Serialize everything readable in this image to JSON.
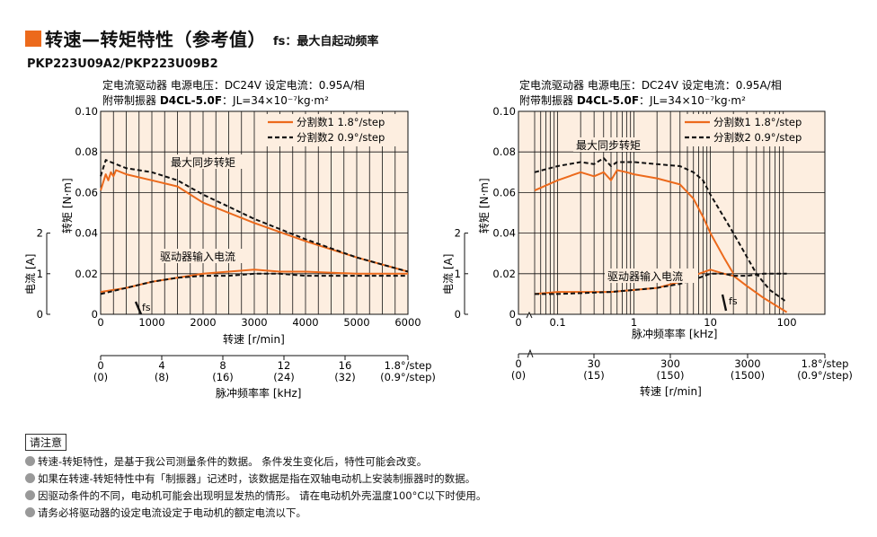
{
  "header": {
    "title": "转速—转矩特性（参考值）",
    "subtitle": "fs：最大自起动频率",
    "model": "PKP223U09A2/PKP223U09B2"
  },
  "condition": {
    "line1": "定电流驱动器  电源电压：DC24V  设定电流：0.95A/相",
    "line2_prefix": "附带制振器 ",
    "line2_damper": "D4CL-5.0F",
    "line2_suffix": "：JL=34×10⁻⁷kg·m²"
  },
  "legend": {
    "item1": "分割数1   1.8°/step",
    "item2": "分割数2   0.9°/step"
  },
  "labels": {
    "torque_axis": "转矩 [N·m]",
    "current_axis": "电流 [A]",
    "max_sync_torque": "最大同步转矩",
    "driver_input_current": "驱动器输入电流",
    "fs": "fs",
    "speed_axis": "转速 [r/min]",
    "pulse_freq_khz": "脉冲频率率 [kHz]",
    "pulse_freq_axis": "脉冲频率率 [kHz]",
    "speed_axis_right": "转速 [r/min]",
    "step_full": "1.8°/step",
    "step_half": "(0.9°/step)"
  },
  "colors": {
    "accent": "#ec6a1c",
    "plot_bg": "#fdeee0",
    "grid": "#111111",
    "series_dashed": "#111111"
  },
  "chart_data": [
    {
      "type": "line",
      "title": "",
      "xlabel": "转速 [r/min]",
      "ylabel": "转矩 [N·m]",
      "y2label": "电流 [A]",
      "xlim": [
        0,
        6000
      ],
      "ylim": [
        0,
        0.1
      ],
      "x_ticks": [
        "0",
        "1000",
        "2000",
        "3000",
        "4000",
        "5000",
        "6000"
      ],
      "y_ticks": [
        "0",
        "0.02",
        "0.04",
        "0.06",
        "0.08",
        "0.10"
      ],
      "y2_ticks": [
        "0",
        "1",
        "2"
      ],
      "grid": true,
      "legend_position": "top-right",
      "secondary_axis_ticks": [
        "0\n(0)",
        "4\n(8)",
        "8\n(16)",
        "12\n(24)",
        "16\n(32)",
        "1.8°/step\n(0.9°/step)"
      ],
      "series": [
        {
          "name": "分割数1   1.8°/step",
          "style": "solid",
          "x": [
            0,
            100,
            150,
            200,
            250,
            300,
            500,
            1000,
            1500,
            2000,
            3000,
            4000,
            5000,
            6000
          ],
          "y": [
            0.061,
            0.069,
            0.066,
            0.07,
            0.068,
            0.071,
            0.069,
            0.066,
            0.063,
            0.055,
            0.045,
            0.036,
            0.028,
            0.021
          ]
        },
        {
          "name": "分割数2   0.9°/step",
          "style": "dashed",
          "x": [
            0,
            50,
            100,
            200,
            300,
            500,
            1000,
            1500,
            2000,
            2500,
            3000,
            4000,
            5000,
            6000
          ],
          "y": [
            0.068,
            0.072,
            0.076,
            0.075,
            0.074,
            0.072,
            0.07,
            0.066,
            0.059,
            0.053,
            0.047,
            0.037,
            0.028,
            0.021
          ]
        },
        {
          "name": "分割数1   1.8°/step",
          "style": "solid",
          "axis": "current",
          "x": [
            0,
            500,
            1000,
            1500,
            2000,
            2500,
            3000,
            3500,
            4000,
            5000,
            6000
          ],
          "y": [
            0.011,
            0.013,
            0.016,
            0.018,
            0.02,
            0.021,
            0.022,
            0.021,
            0.021,
            0.02,
            0.02
          ]
        },
        {
          "name": "分割数2   0.9°/step",
          "style": "dashed",
          "axis": "current",
          "x": [
            0,
            500,
            1000,
            1500,
            2000,
            2500,
            3000,
            3500,
            4000,
            5000,
            6000
          ],
          "y": [
            0.01,
            0.013,
            0.016,
            0.018,
            0.019,
            0.019,
            0.02,
            0.02,
            0.019,
            0.019,
            0.019
          ]
        }
      ]
    },
    {
      "type": "line",
      "title": "",
      "xlabel": "脉冲频率率 [kHz]",
      "ylabel": "转矩 [N·m]",
      "y2label": "电流 [A]",
      "xscale": "log",
      "xlim": [
        0.05,
        100
      ],
      "ylim": [
        0,
        0.1
      ],
      "x_ticks": [
        "0",
        "0.1",
        "1",
        "10",
        "100"
      ],
      "y_ticks": [
        "0",
        "0.02",
        "0.04",
        "0.06",
        "0.08",
        "0.10"
      ],
      "y2_ticks": [
        "0",
        "1",
        "2"
      ],
      "grid": true,
      "legend_position": "top-right",
      "secondary_axis_ticks": [
        "0\n(0)",
        "30\n(15)",
        "300\n(150)",
        "3000\n(1500)",
        "1.8°/step\n(0.9°/step)"
      ],
      "series": [
        {
          "name": "分割数1   1.8°/step",
          "style": "solid",
          "x": [
            0.05,
            0.1,
            0.2,
            0.3,
            0.4,
            0.5,
            0.6,
            0.8,
            1,
            2,
            4,
            6,
            8,
            10,
            15,
            20
          ],
          "y": [
            0.061,
            0.066,
            0.07,
            0.068,
            0.07,
            0.066,
            0.071,
            0.07,
            0.069,
            0.067,
            0.064,
            0.057,
            0.048,
            0.04,
            0.028,
            0.02
          ]
        },
        {
          "name": "分割数2   0.9°/step",
          "style": "dashed",
          "x": [
            0.05,
            0.1,
            0.2,
            0.3,
            0.4,
            0.5,
            0.6,
            1,
            2,
            4,
            6,
            8,
            10,
            20,
            40,
            60,
            100
          ],
          "y": [
            0.07,
            0.073,
            0.075,
            0.074,
            0.077,
            0.073,
            0.075,
            0.075,
            0.074,
            0.073,
            0.07,
            0.066,
            0.059,
            0.04,
            0.02,
            0.012,
            0.006
          ]
        },
        {
          "name": "分割数1   1.8°/step",
          "style": "solid",
          "axis": "current",
          "x": [
            0.05,
            0.1,
            0.5,
            1,
            2,
            4,
            6,
            10,
            15,
            20,
            30,
            50,
            100
          ],
          "y": [
            0.01,
            0.011,
            0.011,
            0.012,
            0.013,
            0.016,
            0.019,
            0.022,
            0.02,
            0.019,
            0.014,
            0.008,
            0.001
          ]
        },
        {
          "name": "分割数2   0.9°/step",
          "style": "dashed",
          "axis": "current",
          "x": [
            0.05,
            0.1,
            0.5,
            1,
            2,
            4,
            6,
            10,
            15,
            20,
            30,
            50,
            100
          ],
          "y": [
            0.01,
            0.01,
            0.011,
            0.012,
            0.013,
            0.015,
            0.017,
            0.02,
            0.02,
            0.019,
            0.019,
            0.02,
            0.02
          ]
        }
      ]
    }
  ],
  "notes": {
    "header": "请注意",
    "items": [
      "转速-转矩特性，是基于我公司测量条件的数据。 条件发生变化后，特性可能会改变。",
      "如果在转速-转矩特性中有「制振器」记述时，该数据是指在双轴电动机上安装制振器时的数据。",
      "因驱动条件的不同，电动机可能会出现明显发热的情形。 请在电动机外壳温度100°C以下时使用。",
      "请务必将驱动器的设定电流设定于电动机的额定电流以下。"
    ]
  }
}
